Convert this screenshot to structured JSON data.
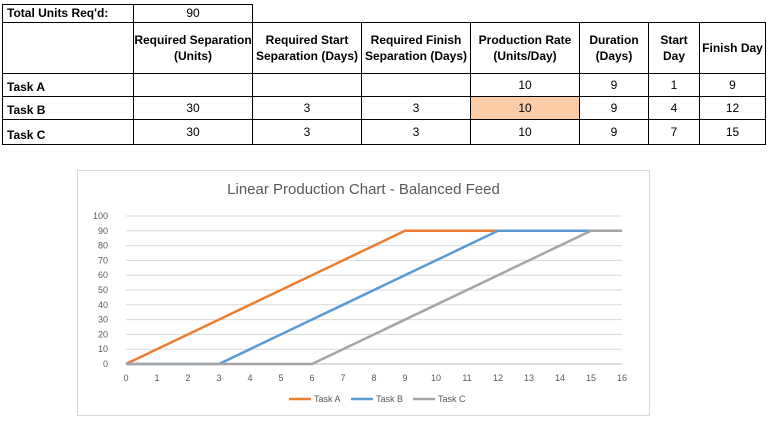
{
  "sheet": {
    "total_label": "Total Units Req'd:",
    "total_value": "90",
    "headers": {
      "sep_units": "Required Separation (Units)",
      "start_sep": "Required Start Separation (Days)",
      "finish_sep": "Required Finish Separation (Days)",
      "rate": "Production Rate (Units/Day)",
      "duration": "Duration (Days)",
      "start": "Start Day",
      "finish": "Finish Day"
    },
    "rows": [
      {
        "task": "Task A",
        "sep_units": "",
        "start_sep": "",
        "finish_sep": "",
        "rate": "10",
        "duration": "9",
        "start": "1",
        "finish": "9"
      },
      {
        "task": "Task B",
        "sep_units": "30",
        "start_sep": "3",
        "finish_sep": "3",
        "rate": "10",
        "duration": "9",
        "start": "4",
        "finish": "12"
      },
      {
        "task": "Task C",
        "sep_units": "30",
        "start_sep": "3",
        "finish_sep": "3",
        "rate": "10",
        "duration": "9",
        "start": "7",
        "finish": "15"
      }
    ],
    "highlight_color": "#fbcca6"
  },
  "chart_data": {
    "type": "line",
    "title": "Linear Production Chart - Balanced Feed",
    "xlim": [
      0,
      16
    ],
    "ylim": [
      0,
      100
    ],
    "x_ticks": [
      0,
      1,
      2,
      3,
      4,
      5,
      6,
      7,
      8,
      9,
      10,
      11,
      12,
      13,
      14,
      15,
      16
    ],
    "y_ticks": [
      0,
      10,
      20,
      30,
      40,
      50,
      60,
      70,
      80,
      90,
      100
    ],
    "grid": true,
    "legend_position": "bottom",
    "series": [
      {
        "name": "Task A",
        "color": "#ed7d31",
        "points": [
          [
            0,
            0
          ],
          [
            9,
            90
          ],
          [
            16,
            90
          ]
        ]
      },
      {
        "name": "Task B",
        "color": "#5b9bd5",
        "points": [
          [
            0,
            0
          ],
          [
            3,
            0
          ],
          [
            12,
            90
          ],
          [
            16,
            90
          ]
        ]
      },
      {
        "name": "Task C",
        "color": "#a5a5a5",
        "points": [
          [
            0,
            0
          ],
          [
            6,
            0
          ],
          [
            15,
            90
          ],
          [
            16,
            90
          ]
        ]
      }
    ]
  }
}
